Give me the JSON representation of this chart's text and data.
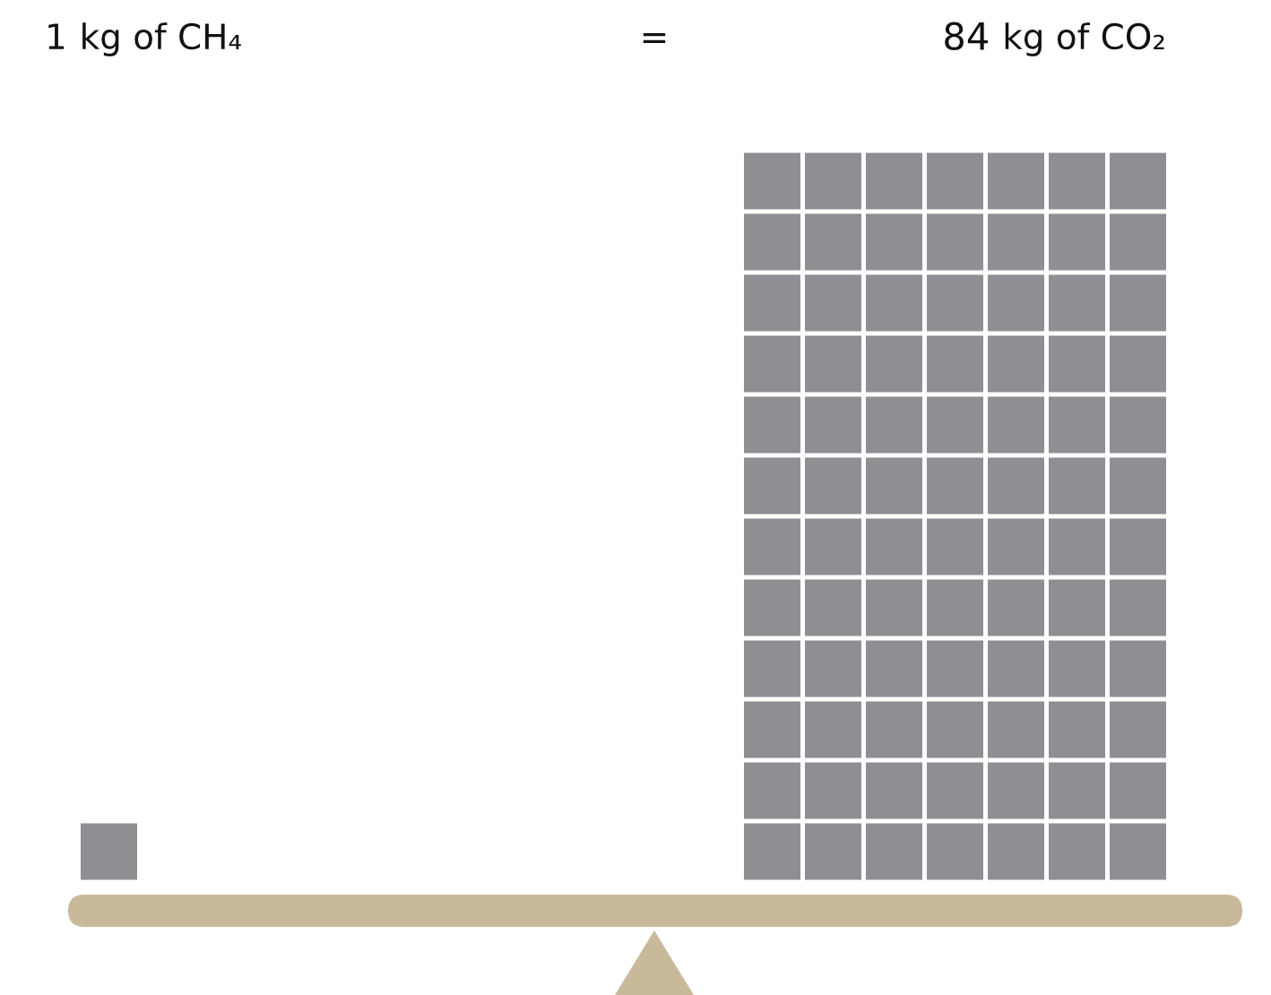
{
  "chart_data": {
    "type": "other",
    "categories": [
      "kg of CH₄",
      "kg of CO₂"
    ],
    "data_labels": true,
    "values": [
      1,
      84
    ],
    "colors": [
      "#8e8f93",
      "#8e8f93"
    ],
    "annotations": [
      "="
    ]
  }
}
